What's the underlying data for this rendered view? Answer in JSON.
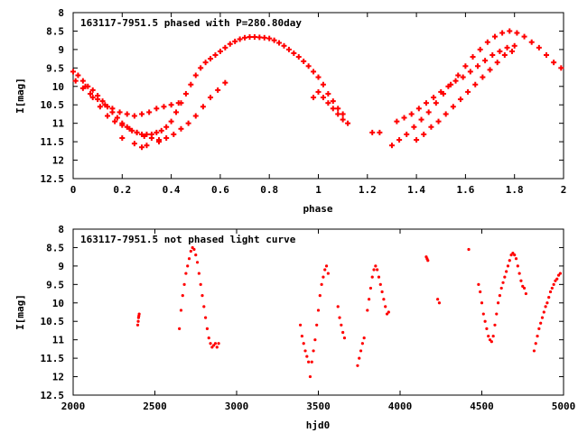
{
  "chart_data": [
    {
      "type": "scatter",
      "title": "163117-7951.5 phased with P=280.80day",
      "xlabel": "phase",
      "ylabel": "I[mag]",
      "xlim": [
        0,
        2
      ],
      "ylim": [
        8,
        12.5
      ],
      "y_inverted": true,
      "x_ticks": [
        "0",
        "0.2",
        "0.4",
        "0.6",
        "0.8",
        "1",
        "1.2",
        "1.4",
        "1.6",
        "1.8",
        "2"
      ],
      "y_ticks": [
        "8",
        "8.5",
        "9",
        "9.5",
        "10",
        "10.5",
        "11",
        "11.5",
        "12",
        "12.5"
      ],
      "marker": "plus",
      "color": "#ff0000",
      "series": [
        {
          "x": [
            0.0,
            0.02,
            0.04,
            0.06,
            0.08,
            0.1,
            0.12,
            0.14,
            0.16,
            0.18,
            0.2,
            0.22,
            0.24,
            0.26,
            0.28,
            0.3,
            0.32,
            0.34,
            0.36,
            0.38,
            0.4,
            0.42,
            0.44,
            0.46,
            0.48,
            0.5,
            0.52,
            0.54,
            0.56,
            0.58,
            0.6,
            0.62,
            0.64,
            0.66,
            0.68,
            0.7,
            0.72,
            0.74,
            0.76,
            0.78,
            0.8,
            0.82,
            0.84,
            0.86,
            0.88,
            0.9,
            0.92,
            0.94,
            0.96,
            0.98,
            1.0,
            1.02,
            1.04,
            1.06,
            1.08,
            1.1,
            0.01,
            0.04,
            0.07,
            0.1,
            0.13,
            0.16,
            0.19,
            0.22,
            0.25,
            0.28,
            0.31,
            0.34,
            0.37,
            0.4,
            0.43,
            0.05,
            0.08,
            0.11,
            0.14,
            0.17,
            0.2,
            0.23,
            0.26,
            0.29,
            0.32,
            0.35,
            0.38,
            0.41,
            0.44,
            0.47,
            0.5,
            0.53,
            0.56,
            0.59,
            0.62,
            0.98,
            1.0,
            1.02,
            1.04,
            1.06,
            1.08,
            1.1,
            1.12,
            0.3,
            0.25,
            0.35,
            0.28,
            0.2,
            1.22,
            1.25,
            1.3,
            1.33,
            1.36,
            1.39,
            1.42,
            1.45,
            1.48,
            1.51,
            1.54,
            1.57,
            1.6,
            1.63,
            1.66,
            1.69,
            1.72,
            1.75,
            1.78,
            1.81,
            1.84,
            1.87,
            1.9,
            1.93,
            1.96,
            1.99,
            1.32,
            1.35,
            1.38,
            1.41,
            1.44,
            1.47,
            1.5,
            1.53,
            1.56,
            1.59,
            1.62,
            1.65,
            1.68,
            1.71,
            1.74,
            1.77,
            1.8,
            1.4,
            1.43,
            1.46,
            1.49,
            1.52,
            1.55,
            1.58,
            1.61,
            1.64,
            1.67,
            1.7,
            1.73,
            1.76,
            1.79
          ],
          "y": [
            9.6,
            9.7,
            9.85,
            10.0,
            10.1,
            10.25,
            10.4,
            10.55,
            10.7,
            10.85,
            11.0,
            11.1,
            11.2,
            11.25,
            11.3,
            11.3,
            11.3,
            11.25,
            11.2,
            11.1,
            10.95,
            10.7,
            10.45,
            10.2,
            9.95,
            9.7,
            9.5,
            9.35,
            9.25,
            9.15,
            9.05,
            8.95,
            8.85,
            8.78,
            8.72,
            8.68,
            8.66,
            8.66,
            8.67,
            8.68,
            8.7,
            8.75,
            8.82,
            8.9,
            9.0,
            9.1,
            9.2,
            9.32,
            9.45,
            9.6,
            9.75,
            9.95,
            10.2,
            10.4,
            10.6,
            10.75,
            9.85,
            10.05,
            10.2,
            10.35,
            10.5,
            10.6,
            10.7,
            10.75,
            10.8,
            10.75,
            10.7,
            10.6,
            10.55,
            10.5,
            10.45,
            10.0,
            10.3,
            10.55,
            10.8,
            10.95,
            11.05,
            11.15,
            11.25,
            11.35,
            11.4,
            11.45,
            11.4,
            11.3,
            11.15,
            11.0,
            10.8,
            10.55,
            10.3,
            10.1,
            9.9,
            10.3,
            10.15,
            10.3,
            10.45,
            10.6,
            10.75,
            10.9,
            11.0,
            11.6,
            11.55,
            11.5,
            11.65,
            11.4,
            11.25,
            11.25,
            11.6,
            11.45,
            11.3,
            11.1,
            10.9,
            10.7,
            10.45,
            10.2,
            9.95,
            9.7,
            9.45,
            9.2,
            9.0,
            8.8,
            8.65,
            8.55,
            8.5,
            8.55,
            8.65,
            8.8,
            8.95,
            9.15,
            9.35,
            9.5,
            10.95,
            10.85,
            10.75,
            10.6,
            10.45,
            10.3,
            10.15,
            10.0,
            9.85,
            9.75,
            9.6,
            9.45,
            9.3,
            9.15,
            9.05,
            8.95,
            8.9,
            11.45,
            11.3,
            11.1,
            10.95,
            10.75,
            10.55,
            10.35,
            10.15,
            9.95,
            9.75,
            9.55,
            9.35,
            9.15,
            9.05
          ]
        }
      ]
    },
    {
      "type": "scatter",
      "title": "163117-7951.5 not phased light curve",
      "xlabel": "hjd0",
      "ylabel": "I[mag]",
      "xlim": [
        2000,
        5000
      ],
      "ylim": [
        8,
        12.5
      ],
      "y_inverted": true,
      "x_ticks": [
        "2000",
        "2500",
        "3000",
        "3500",
        "4000",
        "4500",
        "5000"
      ],
      "y_ticks": [
        "8",
        "8.5",
        "9",
        "9.5",
        "10",
        "10.5",
        "11",
        "11.5",
        "12",
        "12.5"
      ],
      "marker": "dot",
      "color": "#ff0000",
      "series": [
        {
          "x": [
            2395,
            2398,
            2400,
            2402,
            2404,
            2650,
            2660,
            2670,
            2680,
            2690,
            2700,
            2710,
            2720,
            2730,
            2740,
            2750,
            2760,
            2770,
            2780,
            2790,
            2800,
            2810,
            2820,
            2830,
            2840,
            2850,
            2860,
            2870,
            2880,
            2890,
            3390,
            3400,
            3410,
            3420,
            3430,
            3440,
            3450,
            3460,
            3470,
            3480,
            3490,
            3500,
            3510,
            3520,
            3530,
            3540,
            3550,
            3560,
            3620,
            3630,
            3640,
            3650,
            3660,
            3740,
            3750,
            3760,
            3770,
            3780,
            3800,
            3810,
            3820,
            3830,
            3840,
            3850,
            3860,
            3870,
            3880,
            3890,
            3900,
            3910,
            3920,
            3930,
            4160,
            4165,
            4170,
            4230,
            4240,
            4420,
            4480,
            4490,
            4500,
            4510,
            4520,
            4530,
            4540,
            4550,
            4560,
            4570,
            4580,
            4590,
            4600,
            4610,
            4620,
            4630,
            4640,
            4650,
            4660,
            4670,
            4680,
            4690,
            4700,
            4710,
            4720,
            4730,
            4740,
            4750,
            4760,
            4770,
            4820,
            4830,
            4840,
            4850,
            4860,
            4870,
            4880,
            4890,
            4900,
            4910,
            4920,
            4930,
            4940,
            4950,
            4960,
            4970,
            4980
          ],
          "y": [
            10.6,
            10.5,
            10.4,
            10.35,
            10.3,
            10.7,
            10.2,
            9.8,
            9.5,
            9.2,
            9.0,
            8.8,
            8.6,
            8.5,
            8.55,
            8.7,
            8.9,
            9.2,
            9.5,
            9.8,
            10.1,
            10.4,
            10.7,
            10.95,
            11.1,
            11.2,
            11.15,
            11.1,
            11.2,
            11.1,
            10.6,
            10.9,
            11.1,
            11.3,
            11.45,
            11.6,
            12.0,
            11.6,
            11.3,
            11.0,
            10.6,
            10.2,
            9.8,
            9.5,
            9.3,
            9.1,
            9.0,
            9.2,
            10.1,
            10.4,
            10.6,
            10.8,
            10.95,
            11.7,
            11.5,
            11.3,
            11.1,
            10.95,
            10.2,
            9.9,
            9.6,
            9.3,
            9.1,
            9.0,
            9.1,
            9.3,
            9.5,
            9.7,
            9.9,
            10.1,
            10.3,
            10.25,
            8.75,
            8.8,
            8.85,
            9.9,
            10.0,
            8.55,
            9.5,
            9.7,
            10.0,
            10.3,
            10.5,
            10.7,
            10.9,
            11.0,
            11.05,
            10.9,
            10.6,
            10.3,
            10.0,
            9.8,
            9.6,
            9.45,
            9.3,
            9.15,
            9.0,
            8.85,
            8.7,
            8.65,
            8.7,
            8.8,
            9.0,
            9.2,
            9.4,
            9.55,
            9.6,
            9.75,
            11.3,
            11.1,
            10.9,
            10.7,
            10.55,
            10.4,
            10.25,
            10.1,
            10.0,
            9.85,
            9.7,
            9.6,
            9.5,
            9.4,
            9.35,
            9.25,
            9.2
          ]
        }
      ]
    }
  ]
}
